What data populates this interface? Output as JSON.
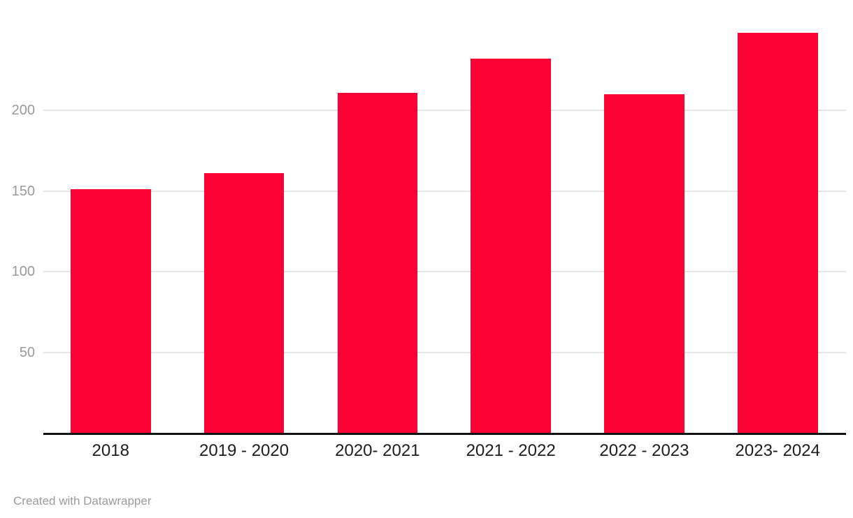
{
  "chart_data": {
    "type": "bar",
    "categories": [
      "2018",
      "2019 - 2020",
      "2020- 2021",
      "2021 - 2022",
      "2022 - 2023",
      "2023- 2024"
    ],
    "values": [
      151,
      161,
      211,
      232,
      210,
      248
    ],
    "title": "",
    "xlabel": "",
    "ylabel": "",
    "ylim": [
      0,
      250
    ],
    "yticks": [
      50,
      100,
      150,
      200
    ],
    "grid": true,
    "legend": false,
    "bar_color": "#fa0233"
  },
  "colors": {
    "bar": "#fa0233",
    "gridline": "#e6e6e6",
    "axis_line": "#141414",
    "y_tick_label": "#9a9a9a",
    "x_category_label": "#1d1d1f",
    "footer_text": "#9b9b9b",
    "background": "#ffffff"
  },
  "footer": {
    "attribution": "Created with Datawrapper"
  }
}
